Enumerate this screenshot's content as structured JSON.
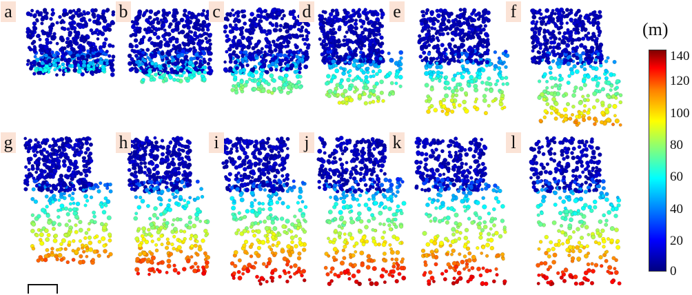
{
  "panels": [
    {
      "label": "a",
      "time_index": 0
    },
    {
      "label": "b",
      "time_index": 1
    },
    {
      "label": "c",
      "time_index": 2
    },
    {
      "label": "d",
      "time_index": 3
    },
    {
      "label": "e",
      "time_index": 4
    },
    {
      "label": "f",
      "time_index": 5
    },
    {
      "label": "g",
      "time_index": 6
    },
    {
      "label": "h",
      "time_index": 7
    },
    {
      "label": "i",
      "time_index": 8
    },
    {
      "label": "j",
      "time_index": 9
    },
    {
      "label": "k",
      "time_index": 10
    },
    {
      "label": "l",
      "time_index": 11
    }
  ],
  "colorbar": {
    "unit": "(m)",
    "ticks": [
      "140",
      "120",
      "100",
      "80",
      "60",
      "40",
      "20",
      "0"
    ],
    "min": 0,
    "max": 140,
    "colors": [
      "#000080",
      "#0000ff",
      "#0080ff",
      "#00ffff",
      "#7fff7f",
      "#ffff00",
      "#ff8000",
      "#ff0000",
      "#800000"
    ]
  },
  "colors": {
    "label_background": "#fbe3d6",
    "background": "#ffffff"
  }
}
